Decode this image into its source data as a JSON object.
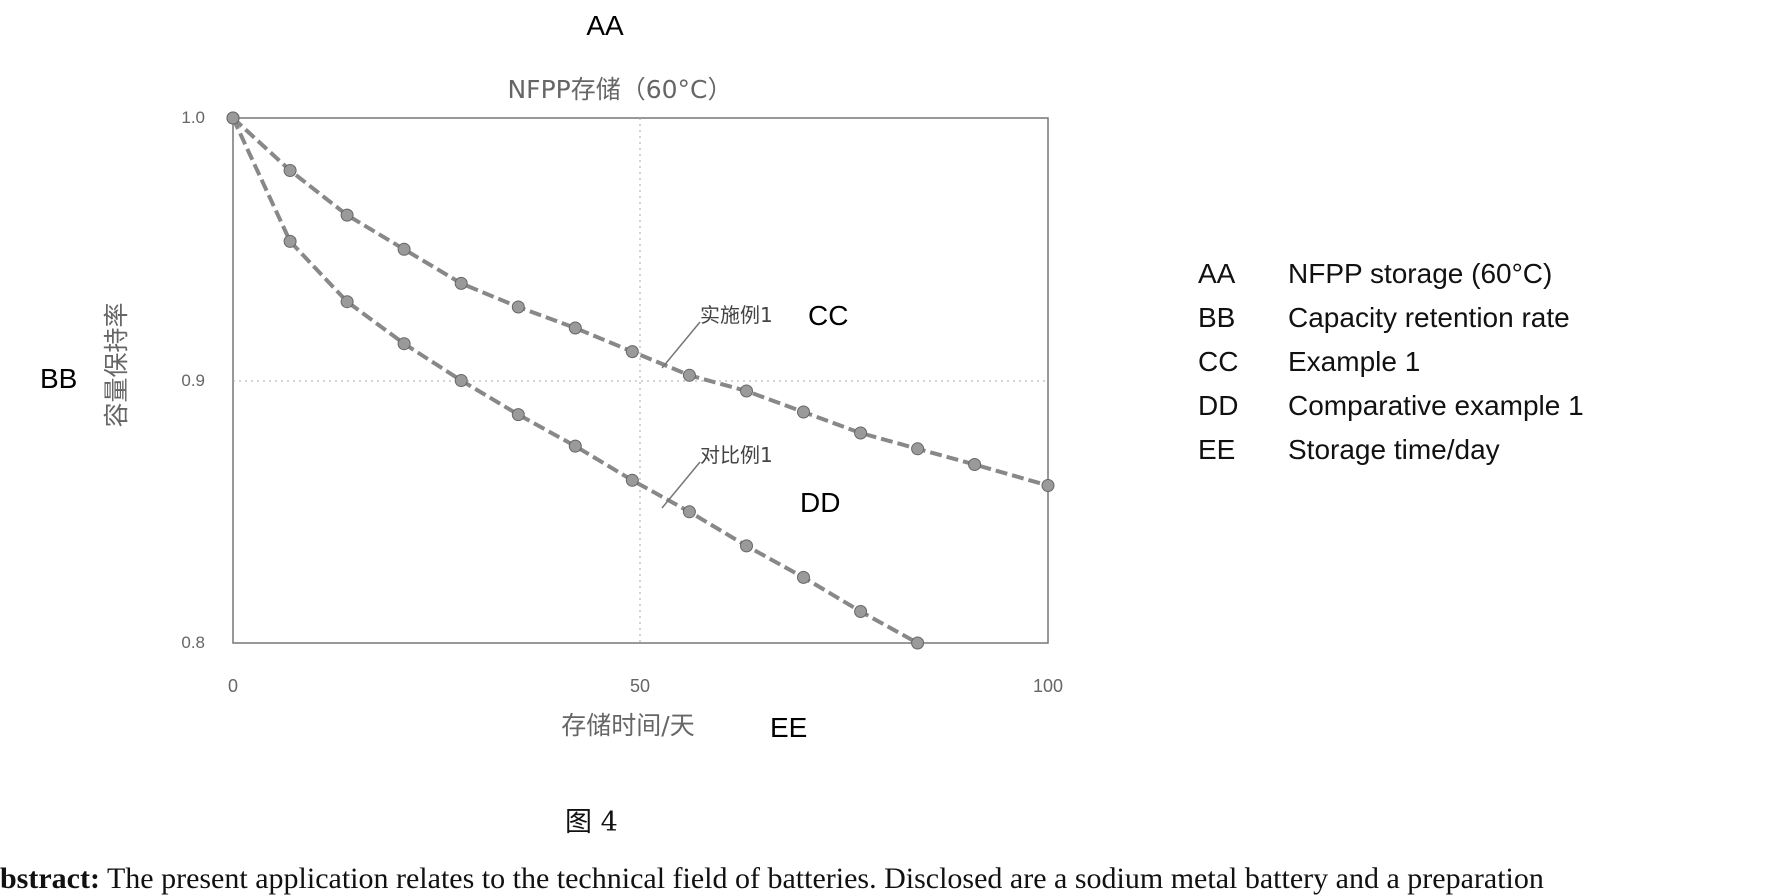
{
  "chart_data": {
    "type": "line",
    "code_title": "AA",
    "title": "NFPP存储（60°C）",
    "ylabel": "容量保持率",
    "ylabel_code": "BB",
    "xlabel": "存储时间/天",
    "xlabel_code": "EE",
    "xlim": [
      0,
      100
    ],
    "ylim": [
      0.8,
      1.0
    ],
    "x_ticks": [
      "0",
      "50",
      "100"
    ],
    "y_ticks": [
      "1.0",
      "0.9",
      "0.8"
    ],
    "x_tick_values": [
      0,
      50,
      100
    ],
    "y_tick_values": [
      1.0,
      0.9,
      0.8
    ],
    "grid": true,
    "series": [
      {
        "name": "实施例1",
        "code": "CC",
        "x": [
          0,
          7,
          14,
          21,
          28,
          35,
          42,
          49,
          56,
          63,
          70,
          77,
          84,
          91,
          100
        ],
        "values": [
          1.0,
          0.98,
          0.963,
          0.95,
          0.937,
          0.928,
          0.92,
          0.911,
          0.902,
          0.896,
          0.888,
          0.88,
          0.874,
          0.868,
          0.86
        ]
      },
      {
        "name": "对比例1",
        "code": "DD",
        "x": [
          0,
          7,
          14,
          21,
          28,
          35,
          42,
          49,
          56,
          63,
          70,
          77,
          84
        ],
        "values": [
          1.0,
          0.953,
          0.93,
          0.914,
          0.9,
          0.887,
          0.875,
          0.862,
          0.85,
          0.837,
          0.825,
          0.812,
          0.8
        ]
      }
    ]
  },
  "legend": [
    {
      "code": "AA",
      "text": "NFPP storage (60°C)"
    },
    {
      "code": "BB",
      "text": "Capacity retention rate"
    },
    {
      "code": "CC",
      "text": "Example 1"
    },
    {
      "code": "DD",
      "text": "Comparative example 1"
    },
    {
      "code": "EE",
      "text": "Storage time/day"
    }
  ],
  "figure_label": "图 4",
  "abstract": {
    "label": "bstract:",
    "text": "The present application relates to the technical field of batteries. Disclosed are a sodium metal battery and a preparation"
  }
}
